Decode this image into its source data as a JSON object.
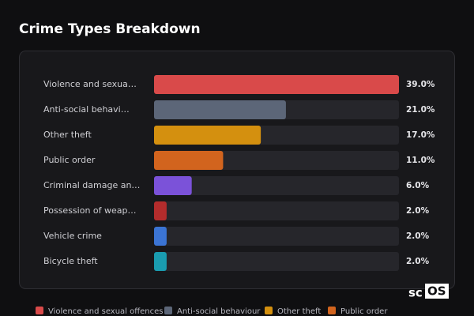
{
  "chart_data": {
    "type": "bar",
    "orientation": "horizontal",
    "title": "Crime Types Breakdown",
    "categories": [
      "Violence and sexua…",
      "Anti-social behavi…",
      "Other theft",
      "Public order",
      "Criminal damage an…",
      "Possession of weap…",
      "Vehicle crime",
      "Bicycle theft"
    ],
    "values": [
      39,
      21,
      17,
      11,
      6,
      2,
      2,
      2
    ],
    "value_labels": [
      "39.0%",
      "21.0%",
      "17.0%",
      "11.0%",
      "6.0%",
      "2.0%",
      "2.0%",
      "2.0%"
    ],
    "colors": [
      "#d94a4a",
      "#5c6678",
      "#d4900f",
      "#d2641e",
      "#7b52d9",
      "#b32c2c",
      "#3b74d4",
      "#1a9cb0"
    ],
    "xlim": [
      0,
      39
    ],
    "legend": [
      "Violence and sexual offences",
      "Anti-social behaviour",
      "Other theft",
      "Public order"
    ]
  },
  "watermark": [
    "sc",
    "OS"
  ]
}
